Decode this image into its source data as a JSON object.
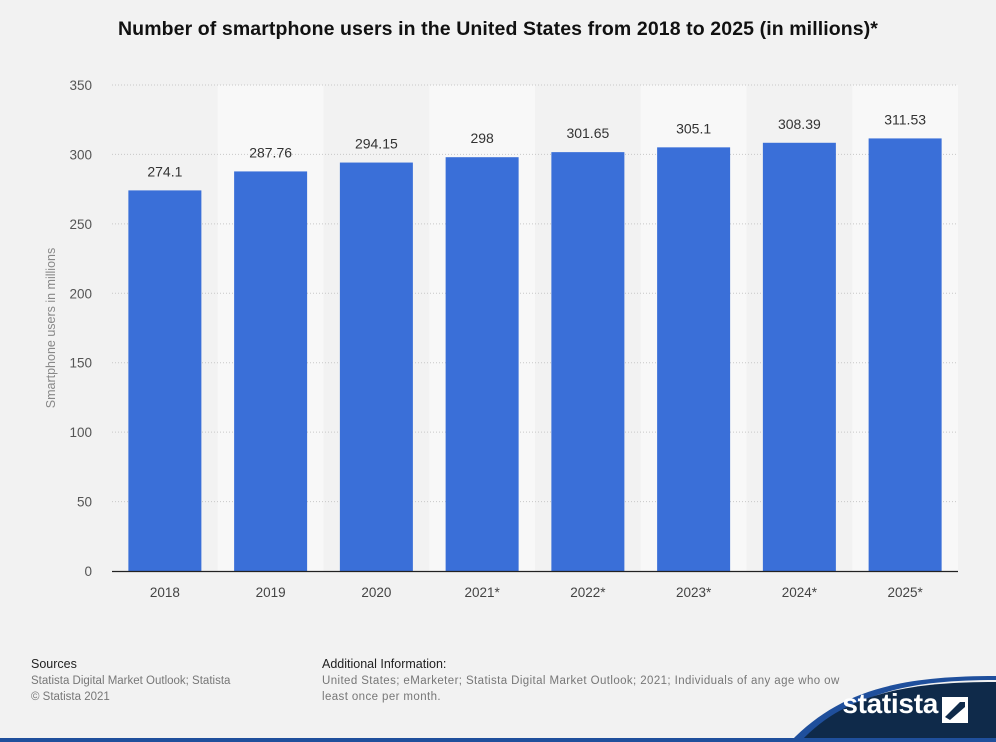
{
  "title": "Number of smartphone users in the United States from 2018 to 2025 (in millions)*",
  "chart_data": {
    "type": "bar",
    "categories": [
      "2018",
      "2019",
      "2020",
      "2021*",
      "2022*",
      "2023*",
      "2024*",
      "2025*"
    ],
    "values": [
      274.1,
      287.76,
      294.15,
      298,
      301.65,
      305.1,
      308.39,
      311.53
    ],
    "value_labels": [
      "274.1",
      "287.76",
      "294.15",
      "298",
      "301.65",
      "305.1",
      "308.39",
      "311.53"
    ],
    "ylabel": "Smartphone users in millions",
    "xlabel": "",
    "ylim": [
      0,
      350
    ],
    "yticks": [
      0,
      50,
      100,
      150,
      200,
      250,
      300,
      350
    ],
    "grid": true,
    "bar_color": "#3a6fd8"
  },
  "footer": {
    "sources_heading": "Sources",
    "sources_lines": [
      "Statista Digital Market Outlook; Statista",
      "© Statista 2021"
    ],
    "additional_heading": "Additional Information:",
    "additional_lines": [
      "United States; eMarketer; Statista Digital Market Outlook; 2021; Individuals of any age who ow",
      "least once per month."
    ]
  },
  "brand": {
    "logo_text": "statista",
    "band_color": "#0f2a4a",
    "stripe_color": "#1f4f9c",
    "icon": "statista-logo-icon"
  }
}
